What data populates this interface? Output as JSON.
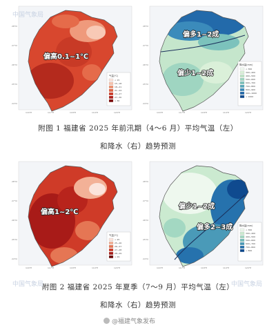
{
  "figures": [
    {
      "caption_line1": "附图 1  福建省 2025 年前汛期（4～6 月）平均气温（左）",
      "caption_line2": "和降水（右）趋势预测",
      "temp_annotation": "偏高0.1~1℃",
      "precip_annotations": [
        "偏多1~2成",
        "偏少1~2成"
      ],
      "temp_legend": {
        "title": "气温(℃)",
        "items": [
          "< 15",
          "15~18",
          "18~21",
          "21~24",
          "24~27",
          "27~30",
          "> 30"
        ],
        "colors": [
          "#fbe4dc",
          "#f7c2ad",
          "#ee9270",
          "#e26445",
          "#cf3b28",
          "#b01f1a",
          "#7e0e0e"
        ]
      },
      "precip_legend": {
        "title": "降水量(mm)",
        "items": [
          "< 300",
          "300~400",
          "400~500",
          "500~600",
          "600~700",
          "700~800",
          "800~900",
          "900~1000",
          "> 1000"
        ],
        "colors": [
          "#f2faf2",
          "#daf0d9",
          "#bfe4c7",
          "#9fd5c1",
          "#7cc2bc",
          "#58a9bb",
          "#3b8bbb",
          "#236aaa",
          "#0f4a8f"
        ]
      }
    },
    {
      "caption_line1": "附图 2  福建省 2025 年夏季（7～9 月）平均气温（左）",
      "caption_line2": "和降水（右）趋势预测",
      "temp_annotation": "偏高1~2℃",
      "precip_annotations": [
        "偏少1~2成",
        "偏多2~3成"
      ],
      "temp_legend": {
        "title": "气温(℃)",
        "items": [
          "< 25",
          "25~26",
          "26~27",
          "27~28",
          "28~29",
          "> 29"
        ],
        "colors": [
          "#fbe4dc",
          "#f3b197",
          "#e57654",
          "#cf3b28",
          "#a81b18",
          "#6e0b0b"
        ]
      },
      "precip_legend": {
        "title": "降水量(mm)",
        "items": [
          "< 300",
          "300~400",
          "400~500",
          "500~600",
          "600~700",
          "700~800",
          "> 800"
        ],
        "colors": [
          "#eef8ee",
          "#cbead0",
          "#a3d8c2",
          "#74bdbb",
          "#4a9ab8",
          "#2672ad",
          "#0f4a8f"
        ]
      }
    }
  ],
  "lat_ticks": [
    "28°N",
    "27°N",
    "26°N",
    "25°N",
    "24°N"
  ],
  "lon_ticks": [
    "116°E",
    "117°E",
    "118°E",
    "119°E",
    "120°E"
  ],
  "watermark": "中国气象局",
  "source": "@福建气象发布"
}
